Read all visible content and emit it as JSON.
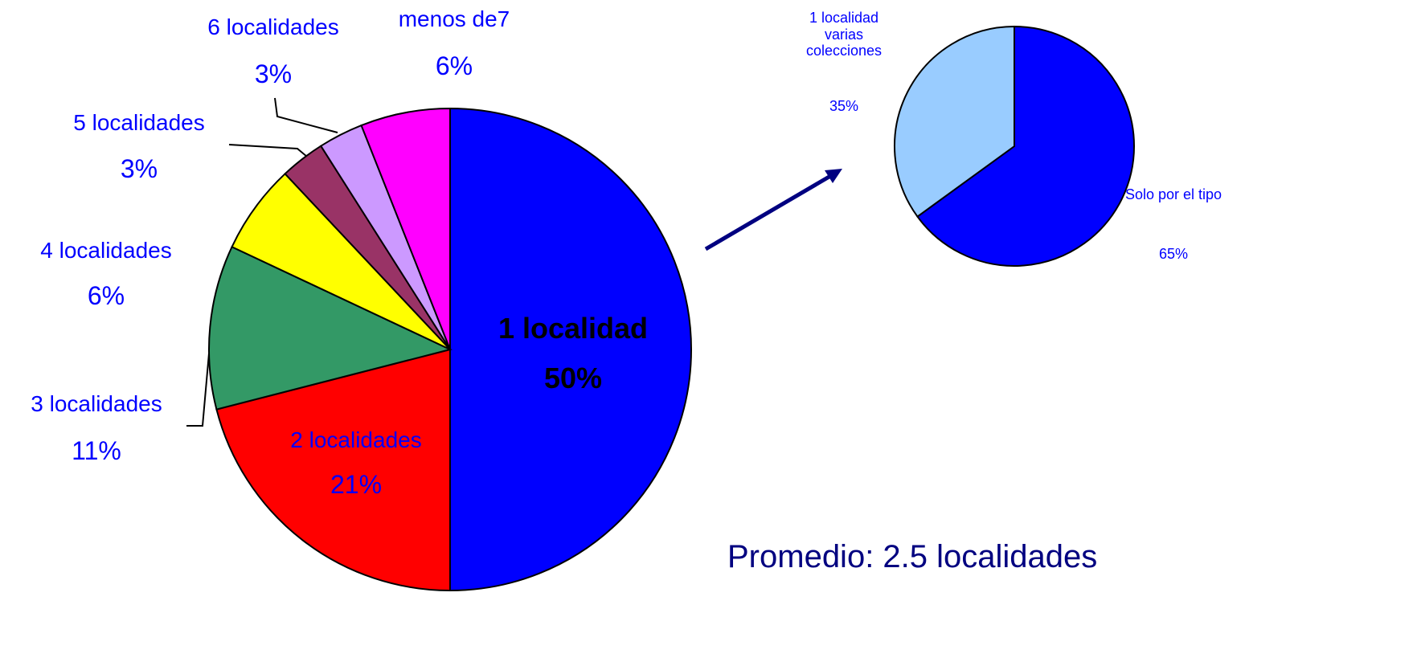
{
  "chart_data": [
    {
      "type": "pie",
      "categories": [
        "1 localidad",
        "2 localidades",
        "3 localidades",
        "4 localidades",
        "5 localidades",
        "6 localidades",
        "menos de7"
      ],
      "values": [
        50,
        21,
        11,
        6,
        3,
        3,
        6
      ],
      "value_labels": [
        "50%",
        "21%",
        "11%",
        "6%",
        "3%",
        "3%",
        "6%"
      ],
      "colors": [
        "#0000ff",
        "#ff0000",
        "#339966",
        "#ffff00",
        "#993366",
        "#cc99ff",
        "#ff00ff"
      ]
    },
    {
      "type": "pie",
      "categories": [
        "Solo por el tipo",
        "1 localidad varias colecciones"
      ],
      "values": [
        65,
        35
      ],
      "value_labels": [
        "65%",
        "35%"
      ],
      "colors": [
        "#0000ff",
        "#99ccff"
      ],
      "annotation": "Promedio: 2.5 localidades"
    }
  ]
}
